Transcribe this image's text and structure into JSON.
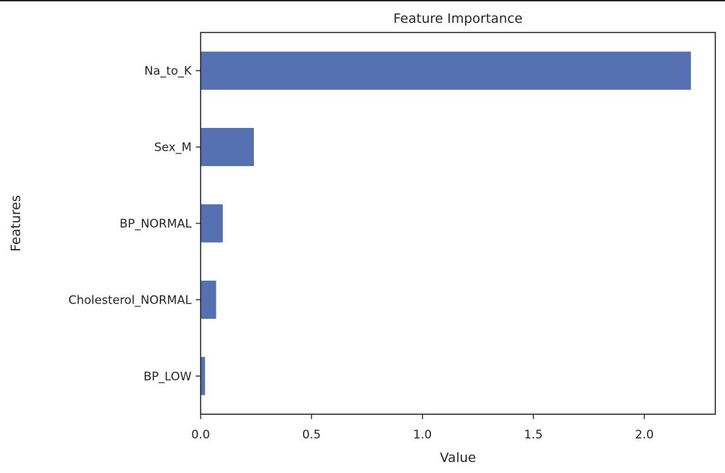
{
  "chart_data": {
    "type": "bar",
    "orientation": "horizontal",
    "title": "Feature Importance",
    "xlabel": "Value",
    "ylabel": "Features",
    "categories": [
      "Na_to_K",
      "Sex_M",
      "BP_NORMAL",
      "Cholesterol_NORMAL",
      "BP_LOW"
    ],
    "values": [
      2.21,
      0.24,
      0.1,
      0.07,
      0.02
    ],
    "xlim": [
      0,
      2.32
    ],
    "xticks": [
      0.0,
      0.5,
      1.0,
      1.5,
      2.0
    ],
    "xtick_labels": [
      "0.0",
      "0.5",
      "1.0",
      "1.5",
      "2.0"
    ],
    "bar_color": "#5470b1",
    "grid": false,
    "legend": false
  }
}
